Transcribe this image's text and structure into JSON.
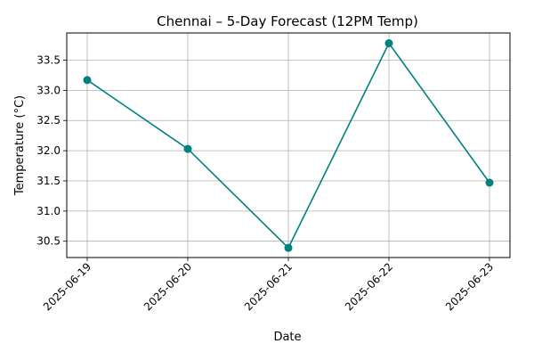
{
  "chart_data": {
    "type": "line",
    "title": "Chennai – 5-Day Forecast (12PM Temp)",
    "xlabel": "Date",
    "ylabel": "Temperature (°C)",
    "x": [
      "2025-06-19",
      "2025-06-20",
      "2025-06-21",
      "2025-06-22",
      "2025-06-23"
    ],
    "y_ticks": [
      30.5,
      31.0,
      31.5,
      32.0,
      32.5,
      33.0,
      33.5
    ],
    "y_tick_labels": [
      "30.5",
      "31.0",
      "31.5",
      "32.0",
      "32.5",
      "33.0",
      "33.5"
    ],
    "ylim": [
      30.23,
      33.95
    ],
    "series": [
      {
        "values": [
          33.17,
          32.03,
          30.39,
          33.78,
          31.47
        ],
        "color": "#008080",
        "marker": "circle"
      }
    ],
    "grid": true,
    "x_tick_rotation_deg": 45
  }
}
